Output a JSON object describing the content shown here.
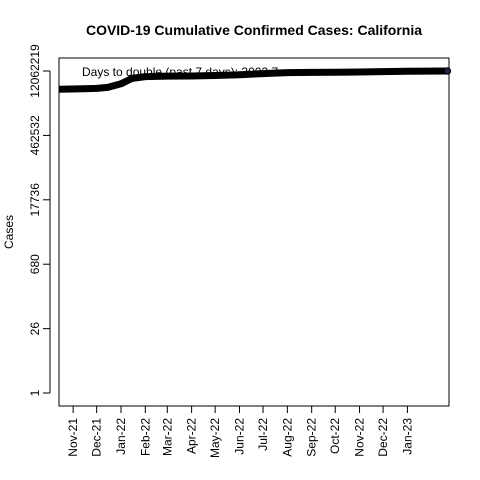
{
  "chart_data": {
    "type": "line",
    "title": "COVID-19 Cumulative Confirmed Cases: California",
    "ylabel": "Cases",
    "xlabel": "",
    "y_scale": "log",
    "y_ticks": [
      {
        "value": 1,
        "label": "1"
      },
      {
        "value": 26,
        "label": "26"
      },
      {
        "value": 680,
        "label": "680"
      },
      {
        "value": 17736,
        "label": "17736"
      },
      {
        "value": 462532,
        "label": "462532"
      },
      {
        "value": 12062219,
        "label": "12062219"
      }
    ],
    "x_ticks": [
      {
        "date": "2021-11-01",
        "label": "Nov-21"
      },
      {
        "date": "2021-12-01",
        "label": "Dec-21"
      },
      {
        "date": "2022-01-01",
        "label": "Jan-22"
      },
      {
        "date": "2022-02-01",
        "label": "Feb-22"
      },
      {
        "date": "2022-03-01",
        "label": "Mar-22"
      },
      {
        "date": "2022-04-01",
        "label": "Apr-22"
      },
      {
        "date": "2022-05-01",
        "label": "May-22"
      },
      {
        "date": "2022-06-01",
        "label": "Jun-22"
      },
      {
        "date": "2022-07-01",
        "label": "Jul-22"
      },
      {
        "date": "2022-08-01",
        "label": "Aug-22"
      },
      {
        "date": "2022-09-01",
        "label": "Sep-22"
      },
      {
        "date": "2022-10-01",
        "label": "Oct-22"
      },
      {
        "date": "2022-11-01",
        "label": "Nov-22"
      },
      {
        "date": "2022-12-01",
        "label": "Dec-22"
      },
      {
        "date": "2023-01-01",
        "label": "Jan-23"
      }
    ],
    "xlim": [
      "2021-10-14",
      "2023-02-23"
    ],
    "annotation": "Days to double (past 7 days): 3003.7",
    "grid": false,
    "series": [
      {
        "color": "#000000",
        "points": [
          {
            "x": "2021-10-14",
            "y": 4810000
          },
          {
            "x": "2021-11-15",
            "y": 4900000
          },
          {
            "x": "2021-12-01",
            "y": 5000000
          },
          {
            "x": "2021-12-15",
            "y": 5250000
          },
          {
            "x": "2022-01-01",
            "y": 6300000
          },
          {
            "x": "2022-01-15",
            "y": 8300000
          },
          {
            "x": "2022-02-01",
            "y": 9100000
          },
          {
            "x": "2022-03-01",
            "y": 9300000
          },
          {
            "x": "2022-04-01",
            "y": 9380000
          },
          {
            "x": "2022-05-01",
            "y": 9600000
          },
          {
            "x": "2022-06-01",
            "y": 10000000
          },
          {
            "x": "2022-07-01",
            "y": 10600000
          },
          {
            "x": "2022-08-01",
            "y": 11100000
          },
          {
            "x": "2022-09-01",
            "y": 11250000
          },
          {
            "x": "2022-10-01",
            "y": 11350000
          },
          {
            "x": "2022-11-01",
            "y": 11450000
          },
          {
            "x": "2022-12-01",
            "y": 11700000
          },
          {
            "x": "2023-01-01",
            "y": 11950000
          },
          {
            "x": "2023-02-21",
            "y": 12062219
          }
        ]
      }
    ]
  }
}
